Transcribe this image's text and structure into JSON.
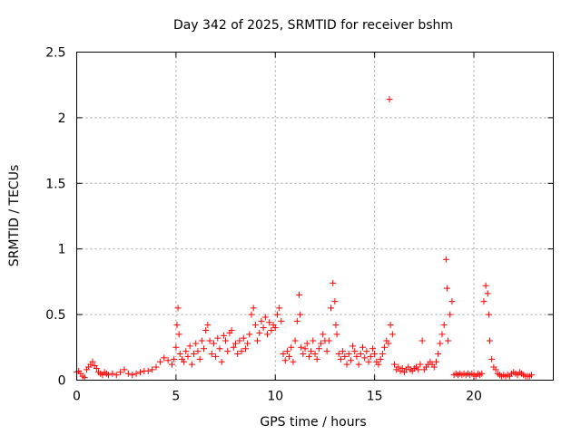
{
  "chart_data": {
    "type": "scatter",
    "title": "Day 342 of 2025, SRMTID for receiver bshm",
    "xlabel": "GPS time / hours",
    "ylabel": "SRMTID / TECUs",
    "xlim": [
      0,
      24
    ],
    "ylim": [
      0,
      2.5
    ],
    "xticks": [
      0,
      5,
      10,
      15,
      20
    ],
    "yticks": [
      0,
      0.5,
      1,
      1.5,
      2,
      2.5
    ],
    "xtick_labels": [
      "0",
      "5",
      "10",
      "15",
      "20"
    ],
    "ytick_labels": [
      "0",
      "0.5",
      "1",
      "1.5",
      "2",
      "2.5"
    ],
    "grid": true,
    "marker": "+",
    "series": [
      {
        "name": "bshm",
        "color": "#ff0000",
        "points": [
          [
            0.0,
            0.06
          ],
          [
            0.1,
            0.07
          ],
          [
            0.2,
            0.05
          ],
          [
            0.3,
            0.03
          ],
          [
            0.4,
            0.02
          ],
          [
            0.5,
            0.08
          ],
          [
            0.6,
            0.1
          ],
          [
            0.7,
            0.12
          ],
          [
            0.8,
            0.14
          ],
          [
            0.9,
            0.11
          ],
          [
            1.0,
            0.09
          ],
          [
            1.1,
            0.06
          ],
          [
            1.2,
            0.05
          ],
          [
            1.3,
            0.04
          ],
          [
            1.4,
            0.06
          ],
          [
            1.5,
            0.05
          ],
          [
            1.6,
            0.04
          ],
          [
            1.8,
            0.05
          ],
          [
            2.0,
            0.04
          ],
          [
            2.2,
            0.06
          ],
          [
            2.4,
            0.08
          ],
          [
            2.6,
            0.05
          ],
          [
            2.8,
            0.04
          ],
          [
            3.0,
            0.05
          ],
          [
            3.2,
            0.06
          ],
          [
            3.4,
            0.07
          ],
          [
            3.6,
            0.07
          ],
          [
            3.8,
            0.08
          ],
          [
            4.0,
            0.1
          ],
          [
            4.2,
            0.14
          ],
          [
            4.4,
            0.17
          ],
          [
            4.6,
            0.15
          ],
          [
            4.8,
            0.12
          ],
          [
            4.9,
            0.16
          ],
          [
            5.0,
            0.25
          ],
          [
            5.05,
            0.42
          ],
          [
            5.1,
            0.55
          ],
          [
            5.15,
            0.35
          ],
          [
            5.2,
            0.2
          ],
          [
            5.3,
            0.16
          ],
          [
            5.4,
            0.14
          ],
          [
            5.5,
            0.22
          ],
          [
            5.6,
            0.18
          ],
          [
            5.7,
            0.26
          ],
          [
            5.8,
            0.12
          ],
          [
            5.9,
            0.2
          ],
          [
            6.0,
            0.28
          ],
          [
            6.1,
            0.22
          ],
          [
            6.2,
            0.16
          ],
          [
            6.3,
            0.3
          ],
          [
            6.4,
            0.24
          ],
          [
            6.5,
            0.38
          ],
          [
            6.6,
            0.42
          ],
          [
            6.7,
            0.3
          ],
          [
            6.8,
            0.2
          ],
          [
            6.9,
            0.28
          ],
          [
            7.0,
            0.18
          ],
          [
            7.1,
            0.32
          ],
          [
            7.2,
            0.24
          ],
          [
            7.3,
            0.14
          ],
          [
            7.4,
            0.34
          ],
          [
            7.5,
            0.3
          ],
          [
            7.6,
            0.22
          ],
          [
            7.7,
            0.36
          ],
          [
            7.8,
            0.38
          ],
          [
            7.9,
            0.25
          ],
          [
            8.0,
            0.28
          ],
          [
            8.1,
            0.2
          ],
          [
            8.2,
            0.3
          ],
          [
            8.3,
            0.22
          ],
          [
            8.4,
            0.32
          ],
          [
            8.5,
            0.24
          ],
          [
            8.6,
            0.28
          ],
          [
            8.7,
            0.35
          ],
          [
            8.8,
            0.5
          ],
          [
            8.9,
            0.55
          ],
          [
            9.0,
            0.42
          ],
          [
            9.1,
            0.3
          ],
          [
            9.2,
            0.36
          ],
          [
            9.3,
            0.45
          ],
          [
            9.4,
            0.4
          ],
          [
            9.5,
            0.48
          ],
          [
            9.6,
            0.35
          ],
          [
            9.7,
            0.44
          ],
          [
            9.8,
            0.38
          ],
          [
            9.9,
            0.42
          ],
          [
            10.0,
            0.4
          ],
          [
            10.1,
            0.5
          ],
          [
            10.2,
            0.55
          ],
          [
            10.3,
            0.45
          ],
          [
            10.4,
            0.2
          ],
          [
            10.5,
            0.15
          ],
          [
            10.6,
            0.22
          ],
          [
            10.7,
            0.18
          ],
          [
            10.8,
            0.25
          ],
          [
            10.9,
            0.14
          ],
          [
            11.0,
            0.3
          ],
          [
            11.1,
            0.45
          ],
          [
            11.2,
            0.65
          ],
          [
            11.25,
            0.5
          ],
          [
            11.3,
            0.25
          ],
          [
            11.4,
            0.2
          ],
          [
            11.5,
            0.24
          ],
          [
            11.6,
            0.28
          ],
          [
            11.7,
            0.18
          ],
          [
            11.8,
            0.22
          ],
          [
            11.9,
            0.3
          ],
          [
            12.0,
            0.2
          ],
          [
            12.1,
            0.16
          ],
          [
            12.2,
            0.24
          ],
          [
            12.3,
            0.28
          ],
          [
            12.4,
            0.35
          ],
          [
            12.5,
            0.3
          ],
          [
            12.6,
            0.22
          ],
          [
            12.7,
            0.3
          ],
          [
            12.8,
            0.55
          ],
          [
            12.9,
            0.74
          ],
          [
            13.0,
            0.6
          ],
          [
            13.05,
            0.42
          ],
          [
            13.1,
            0.35
          ],
          [
            13.2,
            0.2
          ],
          [
            13.3,
            0.16
          ],
          [
            13.4,
            0.22
          ],
          [
            13.5,
            0.18
          ],
          [
            13.6,
            0.12
          ],
          [
            13.7,
            0.2
          ],
          [
            13.8,
            0.15
          ],
          [
            13.9,
            0.26
          ],
          [
            14.0,
            0.22
          ],
          [
            14.1,
            0.18
          ],
          [
            14.2,
            0.12
          ],
          [
            14.3,
            0.2
          ],
          [
            14.4,
            0.25
          ],
          [
            14.5,
            0.17
          ],
          [
            14.6,
            0.22
          ],
          [
            14.7,
            0.14
          ],
          [
            14.8,
            0.18
          ],
          [
            14.9,
            0.24
          ],
          [
            15.0,
            0.2
          ],
          [
            15.1,
            0.14
          ],
          [
            15.2,
            0.12
          ],
          [
            15.3,
            0.16
          ],
          [
            15.4,
            0.2
          ],
          [
            15.5,
            0.25
          ],
          [
            15.6,
            0.3
          ],
          [
            15.7,
            0.28
          ],
          [
            15.75,
            2.14
          ],
          [
            15.8,
            0.42
          ],
          [
            15.9,
            0.35
          ],
          [
            16.0,
            0.12
          ],
          [
            16.1,
            0.08
          ],
          [
            16.2,
            0.1
          ],
          [
            16.3,
            0.07
          ],
          [
            16.4,
            0.09
          ],
          [
            16.5,
            0.06
          ],
          [
            16.6,
            0.08
          ],
          [
            16.7,
            0.1
          ],
          [
            16.8,
            0.08
          ],
          [
            16.9,
            0.07
          ],
          [
            17.0,
            0.09
          ],
          [
            17.1,
            0.1
          ],
          [
            17.2,
            0.08
          ],
          [
            17.3,
            0.12
          ],
          [
            17.4,
            0.3
          ],
          [
            17.5,
            0.08
          ],
          [
            17.6,
            0.1
          ],
          [
            17.7,
            0.12
          ],
          [
            17.8,
            0.14
          ],
          [
            17.9,
            0.12
          ],
          [
            18.0,
            0.1
          ],
          [
            18.1,
            0.14
          ],
          [
            18.2,
            0.2
          ],
          [
            18.3,
            0.28
          ],
          [
            18.4,
            0.35
          ],
          [
            18.5,
            0.42
          ],
          [
            18.6,
            0.92
          ],
          [
            18.65,
            0.7
          ],
          [
            18.7,
            0.3
          ],
          [
            18.8,
            0.5
          ],
          [
            18.9,
            0.6
          ],
          [
            19.0,
            0.04
          ],
          [
            19.1,
            0.05
          ],
          [
            19.2,
            0.04
          ],
          [
            19.3,
            0.05
          ],
          [
            19.4,
            0.04
          ],
          [
            19.5,
            0.05
          ],
          [
            19.6,
            0.04
          ],
          [
            19.7,
            0.05
          ],
          [
            19.8,
            0.04
          ],
          [
            19.9,
            0.05
          ],
          [
            20.0,
            0.04
          ],
          [
            20.1,
            0.03
          ],
          [
            20.2,
            0.05
          ],
          [
            20.3,
            0.04
          ],
          [
            20.4,
            0.05
          ],
          [
            20.5,
            0.6
          ],
          [
            20.6,
            0.72
          ],
          [
            20.7,
            0.66
          ],
          [
            20.75,
            0.5
          ],
          [
            20.8,
            0.3
          ],
          [
            20.9,
            0.16
          ],
          [
            21.0,
            0.1
          ],
          [
            21.1,
            0.08
          ],
          [
            21.2,
            0.05
          ],
          [
            21.3,
            0.04
          ],
          [
            21.4,
            0.03
          ],
          [
            21.5,
            0.04
          ],
          [
            21.6,
            0.03
          ],
          [
            21.7,
            0.04
          ],
          [
            21.8,
            0.03
          ],
          [
            21.9,
            0.05
          ],
          [
            22.0,
            0.06
          ],
          [
            22.1,
            0.05
          ],
          [
            22.2,
            0.04
          ],
          [
            22.3,
            0.06
          ],
          [
            22.4,
            0.05
          ],
          [
            22.5,
            0.04
          ],
          [
            22.6,
            0.03
          ],
          [
            22.7,
            0.03
          ],
          [
            22.8,
            0.03
          ],
          [
            22.9,
            0.04
          ]
        ]
      }
    ]
  }
}
